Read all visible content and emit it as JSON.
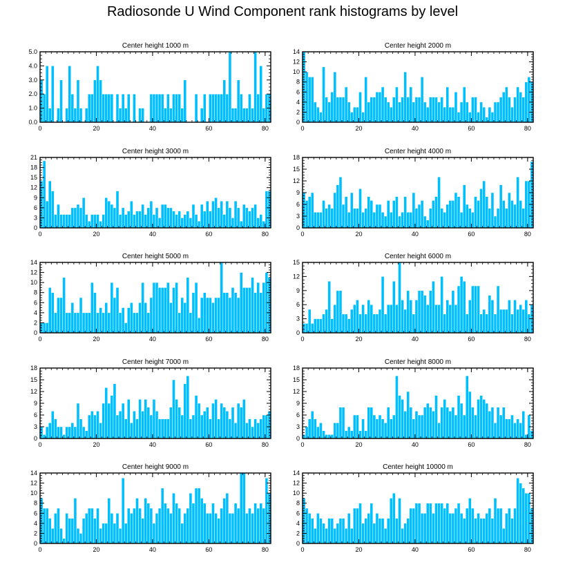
{
  "figure_title": "Radiosonde U Wind Component rank histograms by level",
  "colors": {
    "bar": "#00BFFF",
    "bar_edge": "#FFFFFF",
    "axis": "#000000"
  },
  "chart_data": [
    {
      "type": "bar",
      "title": "Center height 1000 m",
      "xlim": [
        0,
        82
      ],
      "ylim": [
        0,
        5
      ],
      "xticks": [
        0,
        20,
        40,
        60,
        80
      ],
      "xtick_labels": [
        "0",
        "20",
        "40",
        "60",
        "80"
      ],
      "yticks": [
        0,
        1,
        2,
        3,
        4,
        5
      ],
      "ytick_labels": [
        "0.0",
        "1.0",
        "2.0",
        "3.0",
        "4.0",
        "5.0"
      ],
      "values": [
        3,
        2,
        4,
        1,
        4,
        0,
        1,
        3,
        0,
        1,
        4,
        2,
        1,
        3,
        1,
        0,
        1,
        2,
        2,
        3,
        4,
        3,
        2,
        2,
        2,
        2,
        0,
        2,
        1,
        2,
        1,
        2,
        0,
        2,
        0,
        1,
        1,
        0,
        0,
        2,
        2,
        2,
        2,
        2,
        1,
        2,
        1,
        2,
        2,
        2,
        1,
        3,
        0,
        0,
        0,
        2,
        0,
        1,
        2,
        0,
        2,
        2,
        2,
        2,
        2,
        3,
        2,
        5,
        1,
        1,
        3,
        2,
        1,
        1,
        2,
        1,
        5,
        2,
        4,
        1,
        2,
        2
      ]
    },
    {
      "type": "bar",
      "title": "Center height 2000 m",
      "xlim": [
        0,
        82
      ],
      "ylim": [
        0,
        14
      ],
      "xticks": [
        0,
        20,
        40,
        60,
        80
      ],
      "xtick_labels": [
        "0",
        "20",
        "40",
        "60",
        "80"
      ],
      "yticks": [
        0,
        2,
        4,
        6,
        8,
        10,
        12,
        14
      ],
      "ytick_labels": [
        "0",
        "2",
        "4",
        "6",
        "8",
        "10",
        "12",
        "14"
      ],
      "values": [
        14,
        10,
        9,
        9,
        4,
        3,
        2,
        11,
        5,
        4,
        6,
        10,
        5,
        5,
        5,
        7,
        4,
        2,
        3,
        3,
        6,
        2,
        9,
        4,
        5,
        5,
        6,
        6,
        7,
        5,
        4,
        3,
        5,
        7,
        4,
        5,
        10,
        5,
        7,
        4,
        5,
        5,
        9,
        4,
        3,
        5,
        5,
        5,
        4,
        5,
        3,
        7,
        3,
        3,
        6,
        2,
        4,
        7,
        4,
        2,
        5,
        5,
        2,
        4,
        3,
        1,
        3,
        2,
        4,
        4,
        5,
        6,
        7,
        5,
        3,
        5,
        7,
        6,
        5,
        8,
        9,
        8
      ]
    },
    {
      "type": "bar",
      "title": "Center height 3000 m",
      "xlim": [
        0,
        82
      ],
      "ylim": [
        0,
        21
      ],
      "xticks": [
        0,
        20,
        40,
        60,
        80
      ],
      "xtick_labels": [
        "0",
        "20",
        "40",
        "60",
        "80"
      ],
      "yticks": [
        0,
        3,
        6,
        9,
        12,
        15,
        18,
        21
      ],
      "ytick_labels": [
        "0",
        "3",
        "6",
        "9",
        "12",
        "15",
        "18",
        "21"
      ],
      "values": [
        14,
        20,
        8,
        14,
        11,
        4,
        7,
        4,
        4,
        4,
        4,
        6,
        6,
        7,
        6,
        9,
        4,
        2,
        4,
        4,
        4,
        2,
        4,
        9,
        8,
        7,
        6,
        11,
        4,
        6,
        4,
        5,
        8,
        4,
        5,
        5,
        7,
        4,
        6,
        8,
        4,
        6,
        3,
        7,
        7,
        6,
        6,
        5,
        4,
        5,
        3,
        4,
        5,
        3,
        7,
        4,
        2,
        7,
        5,
        8,
        5,
        8,
        9,
        6,
        8,
        4,
        8,
        6,
        3,
        8,
        6,
        2,
        7,
        6,
        5,
        6,
        7,
        3,
        4,
        2,
        11,
        11
      ]
    },
    {
      "type": "bar",
      "title": "Center height 4000 m",
      "xlim": [
        0,
        82
      ],
      "ylim": [
        0,
        18
      ],
      "xticks": [
        0,
        20,
        40,
        60,
        80
      ],
      "xtick_labels": [
        "0",
        "20",
        "40",
        "60",
        "80"
      ],
      "yticks": [
        0,
        3,
        6,
        9,
        12,
        15,
        18
      ],
      "ytick_labels": [
        "0",
        "3",
        "6",
        "9",
        "12",
        "15",
        "18"
      ],
      "values": [
        9,
        7,
        8,
        9,
        4,
        4,
        4,
        7,
        5,
        6,
        5,
        9,
        11,
        13,
        6,
        8,
        4,
        9,
        5,
        5,
        10,
        4,
        5,
        8,
        7,
        4,
        6,
        6,
        4,
        3,
        7,
        4,
        7,
        8,
        3,
        4,
        8,
        4,
        4,
        9,
        5,
        6,
        7,
        3,
        2,
        5,
        7,
        8,
        13,
        5,
        4,
        6,
        7,
        7,
        9,
        8,
        4,
        11,
        6,
        5,
        4,
        8,
        7,
        10,
        12,
        8,
        5,
        9,
        3,
        5,
        11,
        7,
        5,
        9,
        7,
        6,
        13,
        7,
        5,
        12,
        12,
        17
      ]
    },
    {
      "type": "bar",
      "title": "Center height 5000 m",
      "xlim": [
        0,
        82
      ],
      "ylim": [
        0,
        14
      ],
      "xticks": [
        0,
        20,
        40,
        60,
        80
      ],
      "xtick_labels": [
        "0",
        "20",
        "40",
        "60",
        "80"
      ],
      "yticks": [
        0,
        2,
        4,
        6,
        8,
        10,
        12,
        14
      ],
      "ytick_labels": [
        "0",
        "2",
        "4",
        "6",
        "8",
        "10",
        "12",
        "14"
      ],
      "values": [
        2,
        2,
        2,
        9,
        8,
        4,
        7,
        7,
        11,
        4,
        4,
        6,
        4,
        4,
        7,
        4,
        4,
        4,
        10,
        8,
        4,
        5,
        4,
        6,
        4,
        10,
        7,
        9,
        4,
        5,
        2,
        5,
        6,
        4,
        4,
        6,
        10,
        6,
        4,
        7,
        10,
        10,
        9,
        9,
        9,
        10,
        6,
        9,
        10,
        4,
        7,
        6,
        11,
        4,
        8,
        10,
        3,
        7,
        8,
        7,
        7,
        6,
        7,
        7,
        14,
        8,
        8,
        7,
        9,
        8,
        7,
        12,
        9,
        9,
        9,
        11,
        8,
        10,
        8,
        10,
        12,
        11
      ]
    },
    {
      "type": "bar",
      "title": "Center height 6000 m",
      "xlim": [
        0,
        82
      ],
      "ylim": [
        0,
        15
      ],
      "xticks": [
        0,
        20,
        40,
        60,
        80
      ],
      "xtick_labels": [
        "0",
        "20",
        "40",
        "60",
        "80"
      ],
      "yticks": [
        0,
        3,
        6,
        9,
        12,
        15
      ],
      "ytick_labels": [
        "0",
        "3",
        "6",
        "9",
        "12",
        "15"
      ],
      "values": [
        2,
        2,
        5,
        2,
        3,
        3,
        3,
        4,
        5,
        11,
        3,
        6,
        9,
        9,
        4,
        4,
        3,
        5,
        6,
        7,
        4,
        6,
        4,
        7,
        6,
        4,
        4,
        5,
        12,
        4,
        6,
        6,
        11,
        6,
        15,
        7,
        5,
        9,
        7,
        4,
        7,
        9,
        9,
        8,
        6,
        9,
        11,
        6,
        6,
        12,
        4,
        7,
        6,
        9,
        6,
        10,
        12,
        11,
        4,
        7,
        10,
        10,
        10,
        4,
        5,
        4,
        8,
        7,
        4,
        10,
        5,
        5,
        5,
        7,
        4,
        7,
        5,
        6,
        5,
        7,
        4,
        6
      ]
    },
    {
      "type": "bar",
      "title": "Center height 7000 m",
      "xlim": [
        0,
        82
      ],
      "ylim": [
        0,
        18
      ],
      "xticks": [
        0,
        20,
        40,
        60,
        80
      ],
      "xtick_labels": [
        "0",
        "20",
        "40",
        "60",
        "80"
      ],
      "yticks": [
        0,
        3,
        6,
        9,
        12,
        15,
        18
      ],
      "ytick_labels": [
        "0",
        "3",
        "6",
        "9",
        "12",
        "15",
        "18"
      ],
      "values": [
        3,
        1,
        3,
        4,
        7,
        5,
        3,
        3,
        1,
        3,
        3,
        4,
        3,
        9,
        5,
        3,
        2,
        6,
        7,
        6,
        7,
        4,
        9,
        13,
        9,
        11,
        14,
        6,
        7,
        9,
        5,
        10,
        4,
        7,
        5,
        10,
        7,
        10,
        8,
        6,
        10,
        7,
        5,
        5,
        5,
        5,
        8,
        15,
        10,
        8,
        6,
        14,
        16,
        5,
        6,
        11,
        9,
        6,
        7,
        8,
        5,
        9,
        10,
        5,
        9,
        8,
        7,
        5,
        8,
        4,
        9,
        8,
        10,
        4,
        5,
        3,
        5,
        4,
        5,
        6,
        6,
        7
      ]
    },
    {
      "type": "bar",
      "title": "Center height 8000 m",
      "xlim": [
        0,
        82
      ],
      "ylim": [
        0,
        18
      ],
      "xticks": [
        0,
        20,
        40,
        60,
        80
      ],
      "xtick_labels": [
        "0",
        "20",
        "40",
        "60",
        "80"
      ],
      "yticks": [
        0,
        3,
        6,
        9,
        12,
        15,
        18
      ],
      "ytick_labels": [
        "0",
        "3",
        "6",
        "9",
        "12",
        "15",
        "18"
      ],
      "values": [
        1,
        3,
        5,
        7,
        5,
        3,
        4,
        2,
        1,
        1,
        1,
        4,
        4,
        8,
        8,
        2,
        3,
        2,
        6,
        6,
        2,
        5,
        2,
        8,
        8,
        6,
        5,
        6,
        5,
        4,
        8,
        5,
        6,
        16,
        11,
        10,
        7,
        12,
        8,
        5,
        7,
        6,
        6,
        8,
        9,
        8,
        7,
        11,
        4,
        8,
        10,
        8,
        7,
        8,
        6,
        11,
        9,
        6,
        16,
        12,
        8,
        6,
        10,
        11,
        10,
        9,
        7,
        8,
        4,
        8,
        6,
        8,
        5,
        5,
        6,
        4,
        5,
        4,
        7,
        1,
        6,
        2
      ]
    },
    {
      "type": "bar",
      "title": "Center height 9000 m",
      "xlim": [
        0,
        82
      ],
      "ylim": [
        0,
        14
      ],
      "xticks": [
        0,
        20,
        40,
        60,
        80
      ],
      "xtick_labels": [
        "0",
        "20",
        "40",
        "60",
        "80"
      ],
      "yticks": [
        0,
        2,
        4,
        6,
        8,
        10,
        12,
        14
      ],
      "ytick_labels": [
        "0",
        "2",
        "4",
        "6",
        "8",
        "10",
        "12",
        "14"
      ],
      "values": [
        9,
        7,
        7,
        5,
        3,
        6,
        7,
        3,
        1,
        6,
        5,
        5,
        9,
        3,
        2,
        5,
        6,
        7,
        7,
        5,
        7,
        3,
        4,
        4,
        9,
        6,
        4,
        6,
        3,
        13,
        4,
        7,
        6,
        7,
        9,
        7,
        5,
        9,
        8,
        7,
        4,
        6,
        7,
        11,
        8,
        7,
        6,
        10,
        8,
        7,
        4,
        6,
        7,
        10,
        8,
        11,
        11,
        9,
        8,
        6,
        6,
        8,
        6,
        5,
        7,
        9,
        10,
        6,
        6,
        8,
        7,
        14,
        14,
        6,
        7,
        6,
        8,
        7,
        8,
        7,
        13,
        10
      ]
    },
    {
      "type": "bar",
      "title": "Center height 10000 m",
      "xlim": [
        0,
        82
      ],
      "ylim": [
        0,
        14
      ],
      "xticks": [
        0,
        20,
        40,
        60,
        80
      ],
      "xtick_labels": [
        "0",
        "20",
        "40",
        "60",
        "80"
      ],
      "yticks": [
        0,
        2,
        4,
        6,
        8,
        10,
        12,
        14
      ],
      "ytick_labels": [
        "0",
        "2",
        "4",
        "6",
        "8",
        "10",
        "12",
        "14"
      ],
      "values": [
        9,
        7,
        6,
        5,
        3,
        6,
        5,
        4,
        3,
        5,
        5,
        3,
        4,
        5,
        5,
        3,
        6,
        3,
        7,
        7,
        8,
        4,
        5,
        6,
        8,
        4,
        6,
        5,
        5,
        3,
        5,
        9,
        10,
        5,
        9,
        3,
        4,
        5,
        7,
        7,
        8,
        8,
        6,
        6,
        8,
        8,
        6,
        8,
        8,
        8,
        7,
        8,
        6,
        6,
        7,
        8,
        6,
        5,
        7,
        9,
        7,
        5,
        6,
        5,
        5,
        6,
        7,
        5,
        9,
        7,
        7,
        3,
        6,
        7,
        5,
        7,
        13,
        12,
        11,
        10,
        10,
        7
      ]
    }
  ]
}
